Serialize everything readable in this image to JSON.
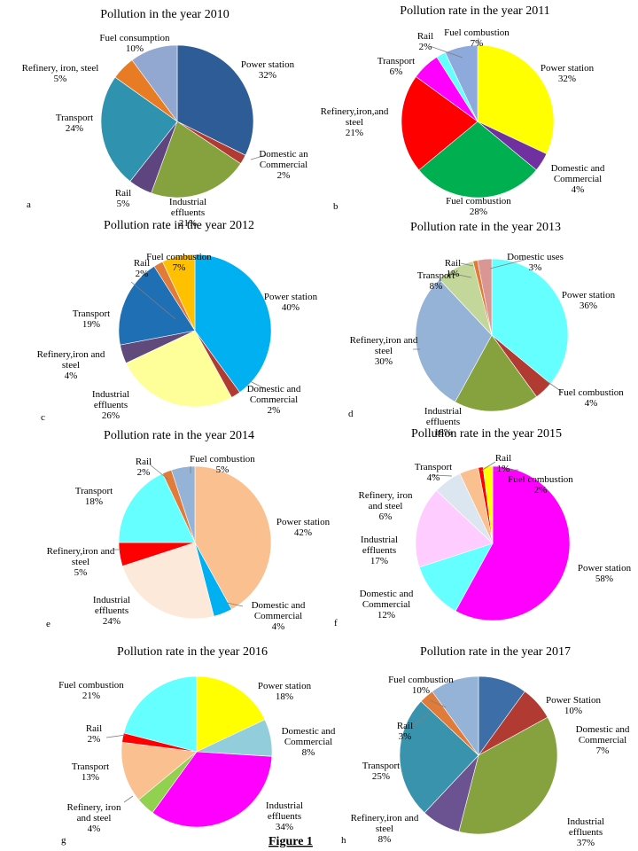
{
  "figure_caption": "Figure 1",
  "chart_data": [
    {
      "type": "pie",
      "panel": "a",
      "title": "Pollution in the year 2010",
      "slices": [
        {
          "label": "Power station",
          "pct": "32%",
          "value": 32,
          "color": "#2e5c96"
        },
        {
          "label": "Domestic an Commercial",
          "pct": "2%",
          "value": 2,
          "color": "#b13a33"
        },
        {
          "label": "Industrial effluents",
          "pct": "21%",
          "value": 21,
          "color": "#86a23f"
        },
        {
          "label": "Rail",
          "pct": "5%",
          "value": 5,
          "color": "#5e457f"
        },
        {
          "label": "Transport",
          "pct": "24%",
          "value": 24,
          "color": "#2f93b0"
        },
        {
          "label": "Refinery, iron, steel",
          "pct": "5%",
          "value": 5,
          "color": "#e77c25"
        },
        {
          "label": "Fuel consumption",
          "pct": "10%",
          "value": 10,
          "color": "#93a8d1"
        }
      ]
    },
    {
      "type": "pie",
      "panel": "b",
      "title": "Pollution rate in the year 2011",
      "slices": [
        {
          "label": "Power station",
          "pct": "32%",
          "value": 32,
          "color": "#ffff00"
        },
        {
          "label": "Domestic and Commercial",
          "pct": "4%",
          "value": 4,
          "color": "#7030a0"
        },
        {
          "label": "Fuel combustion",
          "pct": "28%",
          "value": 28,
          "color": "#00b050"
        },
        {
          "label": "Refinery,iron,and steel",
          "pct": "21%",
          "value": 21,
          "color": "#ff0000"
        },
        {
          "label": "Transport",
          "pct": "6%",
          "value": 6,
          "color": "#ff00ff"
        },
        {
          "label": "Rail",
          "pct": "2%",
          "value": 2,
          "color": "#66ffff"
        },
        {
          "label": "Fuel combustion",
          "pct": "7%",
          "value": 7,
          "color": "#8ea9db"
        }
      ]
    },
    {
      "type": "pie",
      "panel": "c",
      "title": "Pollution rate in the year 2012",
      "slices": [
        {
          "label": "Power station",
          "pct": "40%",
          "value": 40,
          "color": "#00b0f0"
        },
        {
          "label": "Domestic and Commercial",
          "pct": "2%",
          "value": 2,
          "color": "#b13a33"
        },
        {
          "label": "Industrial effluents",
          "pct": "26%",
          "value": 26,
          "color": "#ffff99"
        },
        {
          "label": "Refinery,iron and steel",
          "pct": "4%",
          "value": 4,
          "color": "#604a7b"
        },
        {
          "label": "Transport",
          "pct": "19%",
          "value": 19,
          "color": "#1f6fb5"
        },
        {
          "label": "Rail",
          "pct": "2%",
          "value": 2,
          "color": "#e07b39"
        },
        {
          "label": "Fuel combustion",
          "pct": "7%",
          "value": 7,
          "color": "#ffc000"
        }
      ]
    },
    {
      "type": "pie",
      "panel": "d",
      "title": "Pollution rate in the year 2013",
      "slices": [
        {
          "label": "Power station",
          "pct": "36%",
          "value": 36,
          "color": "#66ffff"
        },
        {
          "label": "Fuel combustion",
          "pct": "4%",
          "value": 4,
          "color": "#b13a33"
        },
        {
          "label": "Industrial effluents",
          "pct": "18%",
          "value": 18,
          "color": "#86a23f"
        },
        {
          "label": "Refinery,iron and steel",
          "pct": "30%",
          "value": 30,
          "color": "#95b3d7"
        },
        {
          "label": "Transport",
          "pct": "8%",
          "value": 8,
          "color": "#c4d79b"
        },
        {
          "label": "Rail",
          "pct": "1%",
          "value": 1,
          "color": "#e07b39"
        },
        {
          "label": "Domestic uses",
          "pct": "3%",
          "value": 3,
          "color": "#d99694"
        }
      ]
    },
    {
      "type": "pie",
      "panel": "e",
      "title": "Pollution rate in the year 2014",
      "slices": [
        {
          "label": "Power station",
          "pct": "42%",
          "value": 42,
          "color": "#fac090"
        },
        {
          "label": "Domestic and Commercial",
          "pct": "4%",
          "value": 4,
          "color": "#00b0f0"
        },
        {
          "label": "Industrial effluents",
          "pct": "24%",
          "value": 24,
          "color": "#fde9d9"
        },
        {
          "label": "Refinery,iron and steel",
          "pct": "5%",
          "value": 5,
          "color": "#ff0000"
        },
        {
          "label": "Transport",
          "pct": "18%",
          "value": 18,
          "color": "#66ffff"
        },
        {
          "label": "Rail",
          "pct": "2%",
          "value": 2,
          "color": "#e07b39"
        },
        {
          "label": "Fuel combustion",
          "pct": "5%",
          "value": 5,
          "color": "#95b3d7"
        }
      ]
    },
    {
      "type": "pie",
      "panel": "f",
      "title": "Pollution rate in the year 2015",
      "slices": [
        {
          "label": "Power station",
          "pct": "58%",
          "value": 58,
          "color": "#ff00ff"
        },
        {
          "label": "Domestic and Commercial",
          "pct": "12%",
          "value": 12,
          "color": "#66ffff"
        },
        {
          "label": "Industrial effluents",
          "pct": "17%",
          "value": 17,
          "color": "#ffccff"
        },
        {
          "label": "Refinery, iron and steel",
          "pct": "6%",
          "value": 6,
          "color": "#dce6f1"
        },
        {
          "label": "Transport",
          "pct": "4%",
          "value": 4,
          "color": "#fac090"
        },
        {
          "label": "Rail",
          "pct": "1%",
          "value": 1,
          "color": "#ff0000"
        },
        {
          "label": "Fuel combustion",
          "pct": "2%",
          "value": 2,
          "color": "#ffff00"
        }
      ]
    },
    {
      "type": "pie",
      "panel": "g",
      "title": "Pollution rate in the year  2016",
      "slices": [
        {
          "label": "Power station",
          "pct": "18%",
          "value": 18,
          "color": "#ffff00"
        },
        {
          "label": "Domestic and Commercial",
          "pct": "8%",
          "value": 8,
          "color": "#92cddc"
        },
        {
          "label": "Industrial effluents",
          "pct": "34%",
          "value": 34,
          "color": "#ff00ff"
        },
        {
          "label": "Refinery, iron and steel",
          "pct": "4%",
          "value": 4,
          "color": "#92d050"
        },
        {
          "label": "Transport",
          "pct": "13%",
          "value": 13,
          "color": "#fac090"
        },
        {
          "label": "Rail",
          "pct": "2%",
          "value": 2,
          "color": "#ff0000"
        },
        {
          "label": "Fuel combustion",
          "pct": "21%",
          "value": 21,
          "color": "#66ffff"
        }
      ]
    },
    {
      "type": "pie",
      "panel": "h",
      "title": "Pollution rate in the year 2017",
      "slices": [
        {
          "label": "Power Station",
          "pct": "10%",
          "value": 10,
          "color": "#3e6ea8"
        },
        {
          "label": "Domestic and Commercial",
          "pct": "7%",
          "value": 7,
          "color": "#b13a33"
        },
        {
          "label": "Industrial effluents",
          "pct": "37%",
          "value": 37,
          "color": "#86a23f"
        },
        {
          "label": "Refinery,iron and steel",
          "pct": "8%",
          "value": 8,
          "color": "#6a5390"
        },
        {
          "label": "Transport",
          "pct": "25%",
          "value": 25,
          "color": "#3a93ad"
        },
        {
          "label": "Rail",
          "pct": "3%",
          "value": 3,
          "color": "#e07b39"
        },
        {
          "label": "Fuel combustion",
          "pct": "10%",
          "value": 10,
          "color": "#95b3d7"
        }
      ]
    }
  ]
}
